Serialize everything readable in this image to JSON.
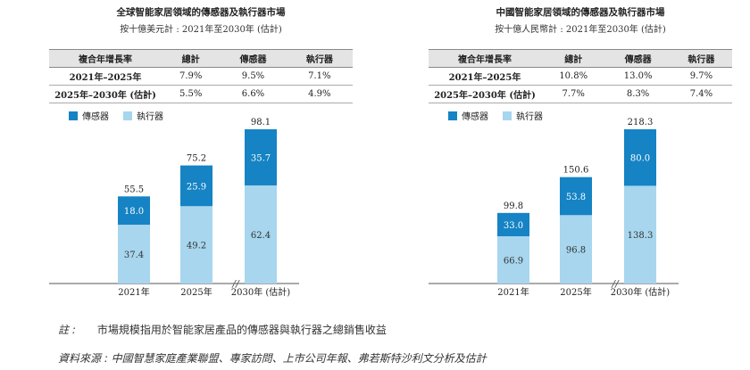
{
  "colors": {
    "sensor": "#1583c4",
    "actuator": "#a7d6ee",
    "axis": "#555555",
    "header_bg": "#e4e4e4"
  },
  "legend": {
    "sensor": "傳感器",
    "actuator": "執行器"
  },
  "panels": [
    {
      "title": "全球智能家居領域的傳感器及執行器市場",
      "subtitle": "按十億美元計 : 2021年至2030年 (估計)",
      "table": {
        "headers": [
          "複合年增長率",
          "總計",
          "傳感器",
          "執行器"
        ],
        "rows": [
          [
            "2021年–2025年",
            "7.9%",
            "9.5%",
            "7.1%"
          ],
          [
            "2025年–2030年 (估計)",
            "5.5%",
            "6.6%",
            "4.9%"
          ]
        ]
      }
    },
    {
      "title": "中國智能家居領域的傳感器及執行器市場",
      "subtitle": "按十億人民幣計 : 2021年至2030年 (估計)",
      "table": {
        "headers": [
          "複合年增長率",
          "總計",
          "傳感器",
          "執行器"
        ],
        "rows": [
          [
            "2021年–2025年",
            "10.8%",
            "13.0%",
            "9.7%"
          ],
          [
            "2025年–2030年 (估計)",
            "7.7%",
            "8.3%",
            "7.4%"
          ]
        ]
      }
    }
  ],
  "chart_data": [
    {
      "type": "bar",
      "stacked": true,
      "categories": [
        "2021年",
        "2025年",
        "2030年 (估計)"
      ],
      "series": [
        {
          "name": "執行器",
          "values": [
            37.4,
            49.2,
            62.4
          ]
        },
        {
          "name": "傳感器",
          "values": [
            18.0,
            25.9,
            35.7
          ]
        }
      ],
      "totals": [
        "55.5",
        "75.2",
        "98.1"
      ],
      "labels": {
        "執行器": [
          "37.4",
          "49.2",
          "62.4"
        ],
        "傳感器": [
          "18.0",
          "25.9",
          "35.7"
        ]
      },
      "axis_break": "//"
    },
    {
      "type": "bar",
      "stacked": true,
      "categories": [
        "2021年",
        "2025年",
        "2030年 (估計)"
      ],
      "series": [
        {
          "name": "執行器",
          "values": [
            66.9,
            96.8,
            138.3
          ]
        },
        {
          "name": "傳感器",
          "values": [
            33.0,
            53.8,
            80.0
          ]
        }
      ],
      "totals": [
        "99.8",
        "150.6",
        "218.3"
      ],
      "labels": {
        "執行器": [
          "66.9",
          "96.8",
          "138.3"
        ],
        "傳感器": [
          "33.0",
          "53.8",
          "80.0"
        ]
      },
      "axis_break": "//"
    }
  ],
  "notes": {
    "note_label": "註 :",
    "note_text": "市場規模指用於智能家居產品的傳感器與執行器之總銷售收益",
    "source_text": "資料來源 : 中國智慧家庭產業聯盟、專家訪問、上市公司年報、弗若斯特沙利文分析及估計"
  }
}
